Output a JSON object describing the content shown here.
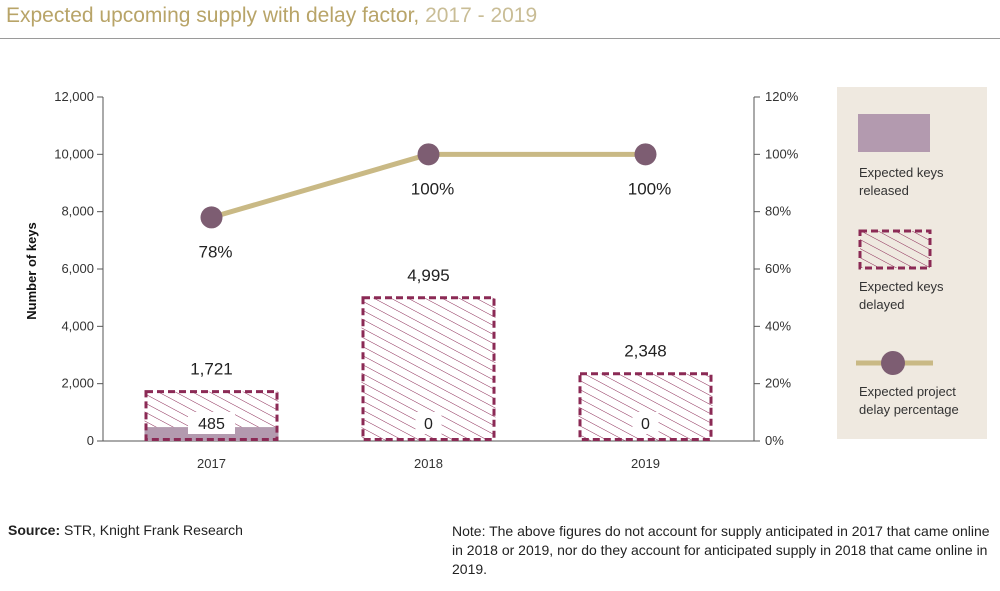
{
  "header": {
    "title": "Expected upcoming supply with delay factor,",
    "years": " 2017 - 2019"
  },
  "footer": {
    "source_label": "Source:",
    "source_text": " STR, Knight Frank Research",
    "note": "Note: The above figures do not account for supply anticipated in 2017 that came online in 2018 or 2019, nor do they account for anticipated supply in 2018 that came online in 2019."
  },
  "colors": {
    "released": "#b39aaf",
    "delayed_border": "#8b2a55",
    "delay_line": "#c9b985",
    "delay_marker": "#7d5d72",
    "legend_bg": "#efe9e0",
    "axis": "#555555"
  },
  "chart_data": {
    "type": "bar",
    "categories": [
      "2017",
      "2018",
      "2019"
    ],
    "ylabel": "Number of keys",
    "ylim": [
      0,
      12000
    ],
    "yticks": [
      "0",
      "2,000",
      "4,000",
      "6,000",
      "8,000",
      "10,000",
      "12,000"
    ],
    "y2lim": [
      0,
      120
    ],
    "y2ticks": [
      "0%",
      "20%",
      "40%",
      "60%",
      "80%",
      "100%",
      "120%"
    ],
    "series": [
      {
        "name": "Expected keys released",
        "kind": "bar",
        "values": [
          485,
          0,
          0
        ],
        "labels": [
          "485",
          "0",
          "0"
        ]
      },
      {
        "name": "Expected keys delayed",
        "kind": "bar-hatched",
        "values": [
          1721,
          4995,
          2348
        ],
        "labels": [
          "1,721",
          "4,995",
          "2,348"
        ]
      },
      {
        "name": "Expected project delay percentage",
        "kind": "line",
        "axis": "right",
        "values": [
          78,
          100,
          100
        ],
        "labels": [
          "78%",
          "100%",
          "100%"
        ]
      }
    ],
    "legend": {
      "position": "right",
      "items": [
        {
          "line1": "Expected keys",
          "line2": "released"
        },
        {
          "line1": "Expected keys",
          "line2": "delayed"
        },
        {
          "line1": "Expected project",
          "line2": "delay percentage"
        }
      ]
    },
    "grid": false
  }
}
